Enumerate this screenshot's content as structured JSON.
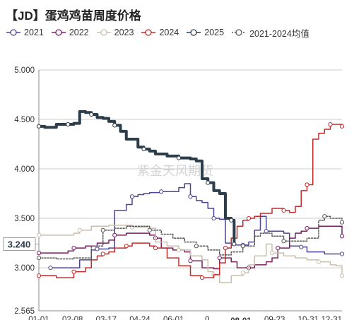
{
  "chart_data": {
    "type": "line",
    "title": "【JD】蛋鸡鸡苗周度价格",
    "xlabel": "",
    "ylabel": "",
    "ylim": [
      2.565,
      5.0
    ],
    "yticks": [
      "2.565",
      "3.000",
      "3.500",
      "4.000",
      "4.500",
      "5.000"
    ],
    "xticks": [
      "01-01",
      "02-08",
      "03-17",
      "04-24",
      "06-01",
      "0",
      "08-01",
      "09-23",
      "10-31",
      "12-31"
    ],
    "highlight_x": "08-01",
    "current_value_label": "3.240",
    "current_value": 3.24,
    "watermark": "紫金天风期货",
    "grid": "horizontal",
    "legend_position": "top",
    "series": [
      {
        "name": "2021",
        "color": "#4b4596",
        "width": 1.5,
        "dash": "",
        "points": [
          [
            2,
            3.0
          ],
          [
            6,
            3.0
          ],
          [
            7,
            3.08
          ],
          [
            9,
            3.18
          ],
          [
            10,
            3.19
          ],
          [
            12,
            3.2
          ],
          [
            13,
            3.58
          ],
          [
            15,
            3.64
          ],
          [
            16,
            3.72
          ],
          [
            17,
            3.74
          ],
          [
            18,
            3.75
          ],
          [
            19,
            3.76
          ],
          [
            21,
            3.77
          ],
          [
            23,
            3.77
          ],
          [
            24,
            3.81
          ],
          [
            25,
            3.85
          ],
          [
            26,
            3.72
          ],
          [
            27,
            3.68
          ],
          [
            28,
            3.66
          ],
          [
            29,
            3.6
          ],
          [
            30,
            3.5
          ],
          [
            31,
            3.49
          ],
          [
            32,
            3.25
          ],
          [
            33,
            3.23
          ],
          [
            35,
            3.23
          ],
          [
            36,
            3.26
          ],
          [
            37,
            3.38
          ],
          [
            38,
            3.52
          ],
          [
            39,
            3.37
          ],
          [
            41,
            3.37
          ],
          [
            42,
            3.35
          ],
          [
            43,
            3.22
          ],
          [
            45,
            3.21
          ],
          [
            46,
            3.16
          ],
          [
            48,
            3.16
          ],
          [
            49,
            3.14
          ],
          [
            52,
            3.14
          ]
        ]
      },
      {
        "name": "2022",
        "color": "#7a1f63",
        "width": 1.5,
        "dash": "",
        "points": [
          [
            0,
            3.15
          ],
          [
            2,
            3.15
          ],
          [
            4,
            3.15
          ],
          [
            5,
            3.17
          ],
          [
            6,
            3.2
          ],
          [
            8,
            3.22
          ],
          [
            10,
            3.25
          ],
          [
            12,
            3.28
          ],
          [
            13,
            3.33
          ],
          [
            15,
            3.35
          ],
          [
            17,
            3.35
          ],
          [
            19,
            3.33
          ],
          [
            20,
            3.3
          ],
          [
            21,
            3.2
          ],
          [
            23,
            3.18
          ],
          [
            25,
            3.16
          ],
          [
            26,
            3.07
          ],
          [
            28,
            3.0
          ],
          [
            29,
            3.0
          ],
          [
            30,
            2.99
          ],
          [
            31,
            3.1
          ],
          [
            32,
            3.1
          ],
          [
            33,
            3.06
          ],
          [
            34,
            3.0
          ],
          [
            36,
            3.0
          ],
          [
            37,
            3.03
          ],
          [
            39,
            3.06
          ],
          [
            40,
            3.1
          ],
          [
            41,
            3.2
          ],
          [
            43,
            3.3
          ],
          [
            44,
            3.35
          ],
          [
            45,
            3.37
          ],
          [
            46,
            3.4
          ],
          [
            48,
            3.42
          ],
          [
            50,
            3.42
          ],
          [
            52,
            3.32
          ]
        ]
      },
      {
        "name": "2023",
        "color": "#c9bfae",
        "width": 1.5,
        "dash": "",
        "points": [
          [
            0,
            3.33
          ],
          [
            2,
            3.33
          ],
          [
            4,
            3.33
          ],
          [
            6,
            3.35
          ],
          [
            7,
            3.38
          ],
          [
            9,
            3.42
          ],
          [
            12,
            3.43
          ],
          [
            14,
            3.43
          ],
          [
            16,
            3.41
          ],
          [
            19,
            3.4
          ],
          [
            20,
            3.26
          ],
          [
            22,
            3.22
          ],
          [
            24,
            3.18
          ],
          [
            26,
            3.12
          ],
          [
            28,
            3.08
          ],
          [
            29,
            2.96
          ],
          [
            30,
            2.93
          ],
          [
            31,
            2.85
          ],
          [
            32,
            2.85
          ],
          [
            33,
            2.92
          ],
          [
            35,
            2.95
          ],
          [
            36,
            3.03
          ],
          [
            37,
            3.12
          ],
          [
            39,
            3.24
          ],
          [
            40,
            3.15
          ],
          [
            42,
            3.12
          ],
          [
            44,
            3.1
          ],
          [
            46,
            3.08
          ],
          [
            48,
            3.06
          ],
          [
            50,
            3.03
          ],
          [
            51,
            3.02
          ],
          [
            52,
            2.92
          ]
        ]
      },
      {
        "name": "2024",
        "color": "#c42b2b",
        "width": 1.5,
        "dash": "",
        "points": [
          [
            0,
            2.92
          ],
          [
            2,
            2.92
          ],
          [
            3,
            2.9
          ],
          [
            5,
            2.9
          ],
          [
            6,
            2.96
          ],
          [
            8,
            3.0
          ],
          [
            9,
            3.08
          ],
          [
            10,
            3.12
          ],
          [
            11,
            3.14
          ],
          [
            12,
            3.16
          ],
          [
            13,
            3.2
          ],
          [
            14,
            3.2
          ],
          [
            15,
            3.22
          ],
          [
            16,
            3.25
          ],
          [
            17,
            3.25
          ],
          [
            19,
            3.22
          ],
          [
            20,
            3.2
          ],
          [
            22,
            3.1
          ],
          [
            24,
            3.02
          ],
          [
            26,
            2.92
          ],
          [
            28,
            2.9
          ],
          [
            29,
            2.9
          ],
          [
            30,
            2.93
          ],
          [
            31,
            3.05
          ],
          [
            32,
            3.2
          ],
          [
            33,
            3.3
          ],
          [
            34,
            3.42
          ],
          [
            35,
            3.48
          ],
          [
            36,
            3.5
          ],
          [
            37,
            3.52
          ],
          [
            38,
            3.55
          ],
          [
            40,
            3.6
          ],
          [
            42,
            3.58
          ],
          [
            43,
            3.56
          ],
          [
            44,
            3.62
          ],
          [
            45,
            3.78
          ],
          [
            46,
            3.84
          ],
          [
            47,
            4.3
          ],
          [
            48,
            4.36
          ],
          [
            49,
            4.4
          ],
          [
            50,
            4.45
          ],
          [
            51,
            4.45
          ],
          [
            52,
            4.43
          ]
        ]
      },
      {
        "name": "2025",
        "color": "#2c3e4c",
        "width": 4,
        "dash": "",
        "points": [
          [
            0,
            4.43
          ],
          [
            1,
            4.42
          ],
          [
            2,
            4.42
          ],
          [
            3,
            4.45
          ],
          [
            5,
            4.45
          ],
          [
            6,
            4.46
          ],
          [
            7,
            4.58
          ],
          [
            8,
            4.57
          ],
          [
            9,
            4.55
          ],
          [
            10,
            4.52
          ],
          [
            11,
            4.51
          ],
          [
            12,
            4.48
          ],
          [
            13,
            4.44
          ],
          [
            14,
            4.38
          ],
          [
            15,
            4.3
          ],
          [
            17,
            4.22
          ],
          [
            18,
            4.2
          ],
          [
            19,
            4.18
          ],
          [
            20,
            4.15
          ],
          [
            22,
            4.13
          ],
          [
            24,
            4.11
          ],
          [
            26,
            4.1
          ],
          [
            27,
            4.08
          ],
          [
            28,
            3.9
          ],
          [
            29,
            3.86
          ],
          [
            30,
            3.78
          ],
          [
            31,
            3.75
          ],
          [
            32,
            3.5
          ],
          [
            33,
            3.48
          ],
          [
            33.5,
            3.24
          ]
        ]
      },
      {
        "name": "2021-2024均值",
        "color": "#555555",
        "width": 1.5,
        "dash": "2,2",
        "points": [
          [
            0,
            3.1
          ],
          [
            3,
            3.09
          ],
          [
            6,
            3.1
          ],
          [
            9,
            3.22
          ],
          [
            11,
            3.38
          ],
          [
            13,
            3.4
          ],
          [
            15,
            3.42
          ],
          [
            17,
            3.42
          ],
          [
            19,
            3.38
          ],
          [
            21,
            3.34
          ],
          [
            23,
            3.3
          ],
          [
            25,
            3.26
          ],
          [
            27,
            3.22
          ],
          [
            29,
            3.18
          ],
          [
            31,
            3.13
          ],
          [
            33,
            3.16
          ],
          [
            35,
            3.22
          ],
          [
            37,
            3.32
          ],
          [
            38,
            3.35
          ],
          [
            40,
            3.32
          ],
          [
            42,
            3.27
          ],
          [
            44,
            3.27
          ],
          [
            46,
            3.3
          ],
          [
            48,
            3.48
          ],
          [
            49,
            3.52
          ],
          [
            50,
            3.5
          ],
          [
            52,
            3.46
          ]
        ]
      }
    ]
  }
}
